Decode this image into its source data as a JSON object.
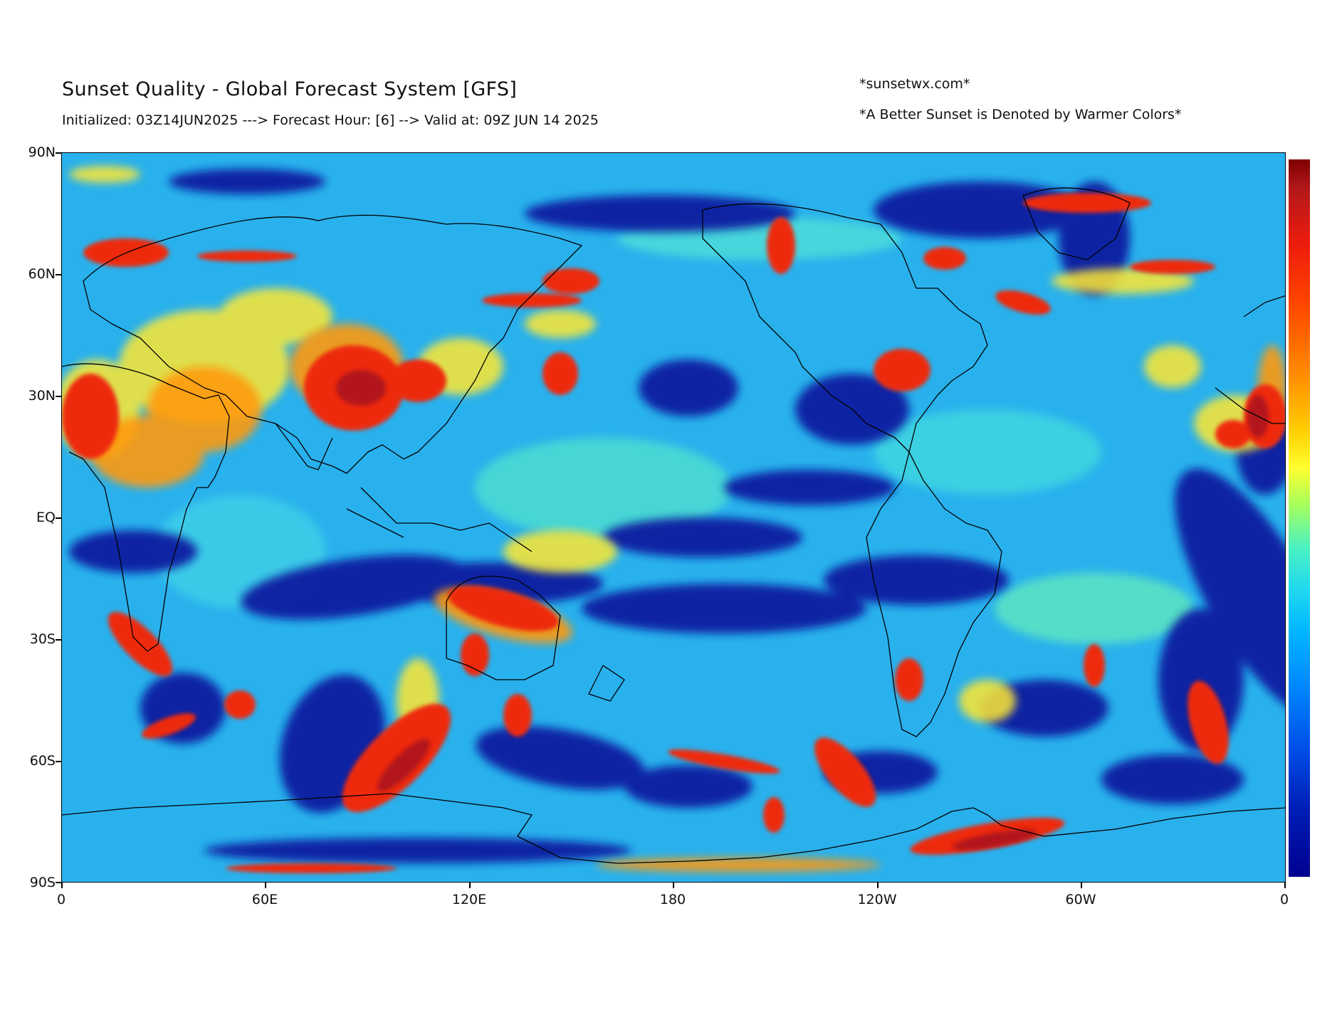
{
  "header": {
    "title": "Sunset Quality - Global Forecast System [GFS]",
    "subtitle": "Initialized: 03Z14JUN2025 ---> Forecast Hour: [6] --> Valid at: 09Z JUN 14 2025",
    "credit": "*sunsetwx.com*",
    "note": "*A Better Sunset is Denoted by Warmer Colors*"
  },
  "map": {
    "projection": "equirectangular",
    "lat_labels": [
      "90N",
      "60N",
      "30N",
      "EQ",
      "30S",
      "60S",
      "90S"
    ],
    "lon_labels": [
      "0",
      "60E",
      "120E",
      "180",
      "120W",
      "60W",
      "0"
    ],
    "colorbar": {
      "orientation": "vertical",
      "colormap": "jet",
      "top_color": "#b2181b",
      "bottom_color": "#00008f"
    },
    "colors": {
      "ocean_base": "#2aa8f0",
      "low_quality": "#0a1aa0",
      "mid_quality": "#ffe830",
      "high_quality": "#ee2a10",
      "coastline": "#000000"
    }
  }
}
